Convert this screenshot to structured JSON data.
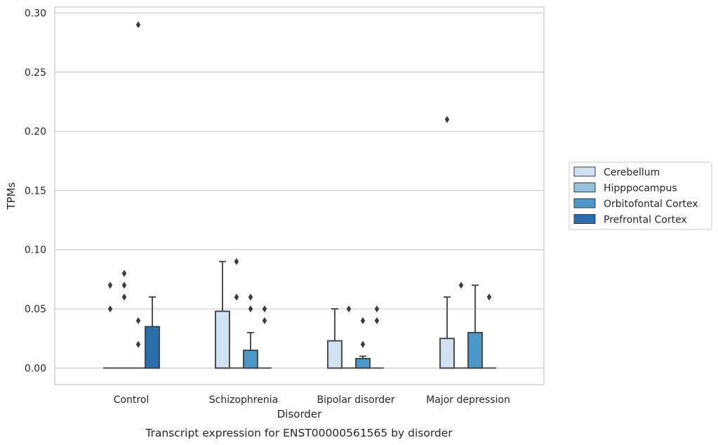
{
  "chart_data": {
    "type": "boxplot",
    "caption": "Transcript expression for ENST00000561565 by disorder",
    "xlabel": "Disorder",
    "ylabel": "TPMs",
    "ylim": [
      -0.014,
      0.305
    ],
    "yticks": [
      0.0,
      0.05,
      0.1,
      0.15,
      0.2,
      0.25,
      0.3
    ],
    "ytick_labels": [
      "0.00",
      "0.05",
      "0.10",
      "0.15",
      "0.20",
      "0.25",
      "0.30"
    ],
    "grid": true,
    "legend_position": "right",
    "categories": [
      "Control",
      "Schizophrenia",
      "Bipolar disorder",
      "Major depression"
    ],
    "series": [
      {
        "name": "Cerebellum",
        "color": "#d0e1f2",
        "boxes": [
          {
            "q1": 0,
            "median": 0,
            "q3": 0,
            "whisker_low": 0,
            "whisker_high": 0,
            "outliers": [
              0.05,
              0.07
            ]
          },
          {
            "q1": 0,
            "median": 0,
            "q3": 0.048,
            "whisker_low": 0,
            "whisker_high": 0.09,
            "outliers": []
          },
          {
            "q1": 0,
            "median": 0,
            "q3": 0.023,
            "whisker_low": 0,
            "whisker_high": 0.05,
            "outliers": []
          },
          {
            "q1": 0,
            "median": 0,
            "q3": 0.025,
            "whisker_low": 0,
            "whisker_high": 0.06,
            "outliers": [
              0.21
            ]
          }
        ]
      },
      {
        "name": "Hipppocampus",
        "color": "#94c4df",
        "boxes": [
          {
            "q1": 0,
            "median": 0,
            "q3": 0,
            "whisker_low": 0,
            "whisker_high": 0,
            "outliers": [
              0.06,
              0.07,
              0.08
            ]
          },
          {
            "q1": 0,
            "median": 0,
            "q3": 0,
            "whisker_low": 0,
            "whisker_high": 0,
            "outliers": [
              0.06,
              0.09
            ]
          },
          {
            "q1": 0,
            "median": 0,
            "q3": 0,
            "whisker_low": 0,
            "whisker_high": 0,
            "outliers": [
              0.05
            ]
          },
          {
            "q1": 0,
            "median": 0,
            "q3": 0,
            "whisker_low": 0,
            "whisker_high": 0,
            "outliers": [
              0.07
            ]
          }
        ]
      },
      {
        "name": "Orbitofontal Cortex",
        "color": "#4a98c9",
        "boxes": [
          {
            "q1": 0,
            "median": 0,
            "q3": 0,
            "whisker_low": 0,
            "whisker_high": 0,
            "outliers": [
              0.02,
              0.04,
              0.29
            ]
          },
          {
            "q1": 0,
            "median": 0,
            "q3": 0.015,
            "whisker_low": 0,
            "whisker_high": 0.03,
            "outliers": [
              0.05,
              0.06
            ]
          },
          {
            "q1": 0,
            "median": 0,
            "q3": 0.008,
            "whisker_low": 0,
            "whisker_high": 0.01,
            "outliers": [
              0.02,
              0.04
            ]
          },
          {
            "q1": 0,
            "median": 0,
            "q3": 0.03,
            "whisker_low": 0,
            "whisker_high": 0.07,
            "outliers": []
          }
        ]
      },
      {
        "name": "Prefrontal Cortex",
        "color": "#2a6ead",
        "boxes": [
          {
            "q1": 0,
            "median": 0,
            "q3": 0.035,
            "whisker_low": 0,
            "whisker_high": 0.06,
            "outliers": []
          },
          {
            "q1": 0,
            "median": 0,
            "q3": 0,
            "whisker_low": 0,
            "whisker_high": 0,
            "outliers": [
              0.04,
              0.05
            ]
          },
          {
            "q1": 0,
            "median": 0,
            "q3": 0,
            "whisker_low": 0,
            "whisker_high": 0,
            "outliers": [
              0.04,
              0.05
            ]
          },
          {
            "q1": 0,
            "median": 0,
            "q3": 0,
            "whisker_low": 0,
            "whisker_high": 0,
            "outliers": [
              0.06
            ]
          }
        ]
      }
    ]
  }
}
